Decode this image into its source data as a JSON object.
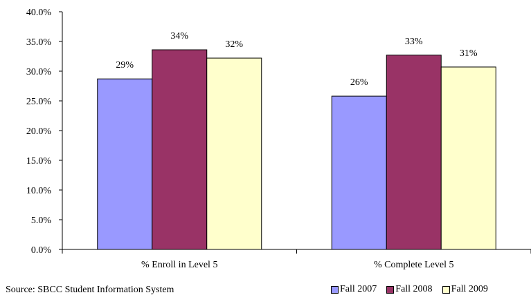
{
  "colors": {
    "Fall 2007": "#9999ff",
    "Fall 2008": "#993366",
    "Fall 2009": "#ffffcc"
  },
  "chart_data": {
    "type": "bar",
    "categories": [
      "% Enroll in Level 5",
      "% Complete Level 5"
    ],
    "series": [
      {
        "name": "Fall 2007",
        "values": [
          28.7,
          25.8
        ],
        "labels": [
          "29%",
          "26%"
        ]
      },
      {
        "name": "Fall 2008",
        "values": [
          33.6,
          32.7
        ],
        "labels": [
          "34%",
          "33%"
        ]
      },
      {
        "name": "Fall 2009",
        "values": [
          32.2,
          30.7
        ],
        "labels": [
          "32%",
          "31%"
        ]
      }
    ],
    "y_ticks": [
      "0.0%",
      "5.0%",
      "10.0%",
      "15.0%",
      "20.0%",
      "25.0%",
      "30.0%",
      "35.0%",
      "40.0%"
    ],
    "ylim": [
      0,
      40
    ],
    "grid": false,
    "legend_position": "bottom-right"
  },
  "source_note": "Source: SBCC Student Information System"
}
